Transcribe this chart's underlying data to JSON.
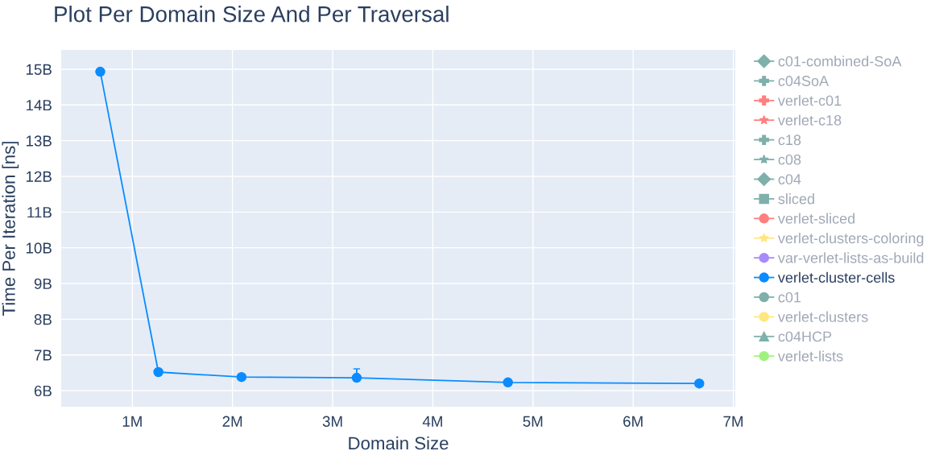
{
  "chart_data": {
    "type": "line",
    "title": "Plot Per Domain Size And Per Traversal",
    "xlabel": "Domain Size",
    "ylabel": "Time Per Iteration [ns]",
    "x": [
      680000,
      1260000,
      2090000,
      3240000,
      4750000,
      6660000
    ],
    "xlim": [
      290000,
      7020000
    ],
    "xticks": [
      {
        "value": 1000000,
        "label": "1M"
      },
      {
        "value": 2000000,
        "label": "2M"
      },
      {
        "value": 3000000,
        "label": "3M"
      },
      {
        "value": 4000000,
        "label": "4M"
      },
      {
        "value": 5000000,
        "label": "5M"
      },
      {
        "value": 6000000,
        "label": "6M"
      },
      {
        "value": 7000000,
        "label": "7M"
      }
    ],
    "ylim": [
      5550000000,
      15540000000
    ],
    "yticks": [
      {
        "value": 6000000000,
        "label": "6B"
      },
      {
        "value": 7000000000,
        "label": "7B"
      },
      {
        "value": 8000000000,
        "label": "8B"
      },
      {
        "value": 9000000000,
        "label": "9B"
      },
      {
        "value": 10000000000,
        "label": "10B"
      },
      {
        "value": 11000000000,
        "label": "11B"
      },
      {
        "value": 12000000000,
        "label": "12B"
      },
      {
        "value": 13000000000,
        "label": "13B"
      },
      {
        "value": 14000000000,
        "label": "14B"
      },
      {
        "value": 15000000000,
        "label": "15B"
      }
    ],
    "grid": true,
    "legend": "right",
    "line_style": "solid",
    "series": [
      {
        "name": "c01-combined-SoA",
        "color": "#7fb0aa",
        "marker": "diamond",
        "values": [
          null,
          null,
          null,
          null,
          null,
          null
        ]
      },
      {
        "name": "c04SoA",
        "color": "#7fb0aa",
        "marker": "cross",
        "values": [
          null,
          null,
          null,
          null,
          null,
          null
        ]
      },
      {
        "name": "verlet-c01",
        "color": "#ff7f7f",
        "marker": "cross",
        "values": [
          null,
          null,
          null,
          null,
          null,
          null
        ]
      },
      {
        "name": "verlet-c18",
        "color": "#ff7f7f",
        "marker": "star",
        "values": [
          null,
          null,
          null,
          null,
          null,
          null
        ]
      },
      {
        "name": "c18",
        "color": "#7fb0aa",
        "marker": "cross",
        "values": [
          null,
          null,
          null,
          null,
          null,
          null
        ]
      },
      {
        "name": "c08",
        "color": "#7fb0aa",
        "marker": "star",
        "values": [
          null,
          null,
          null,
          null,
          null,
          null
        ]
      },
      {
        "name": "c04",
        "color": "#7fb0aa",
        "marker": "diamond",
        "values": [
          null,
          null,
          null,
          null,
          null,
          null
        ]
      },
      {
        "name": "sliced",
        "color": "#7fb0aa",
        "marker": "square",
        "values": [
          null,
          null,
          null,
          null,
          null,
          null
        ]
      },
      {
        "name": "verlet-sliced",
        "color": "#ff7f7f",
        "marker": "circle",
        "values": [
          null,
          null,
          null,
          null,
          null,
          null
        ]
      },
      {
        "name": "verlet-clusters-coloring",
        "color": "#ffe680",
        "marker": "star",
        "values": [
          null,
          null,
          null,
          null,
          null,
          null
        ]
      },
      {
        "name": "var-verlet-lists-as-build",
        "color": "#a78bfa",
        "marker": "circle",
        "values": [
          null,
          null,
          null,
          null,
          null,
          null
        ]
      },
      {
        "name": "verlet-cluster-cells",
        "color": "#0a8cff",
        "marker": "circle",
        "values": [
          14930000000,
          6520000000,
          6380000000,
          6360000000,
          6230000000,
          6200000000
        ],
        "errors": [
          null,
          null,
          null,
          [
            6360000000,
            6610000000
          ],
          null,
          null
        ]
      },
      {
        "name": "c01",
        "color": "#7fb0aa",
        "marker": "circle",
        "values": [
          null,
          null,
          null,
          null,
          null,
          null
        ]
      },
      {
        "name": "verlet-clusters",
        "color": "#ffe680",
        "marker": "circle",
        "values": [
          null,
          null,
          null,
          null,
          null,
          null
        ]
      },
      {
        "name": "c04HCP",
        "color": "#7fb0aa",
        "marker": "triangle",
        "values": [
          null,
          null,
          null,
          null,
          null,
          null
        ]
      },
      {
        "name": "verlet-lists",
        "color": "#a0f27f",
        "marker": "circle",
        "values": [
          null,
          null,
          null,
          null,
          null,
          null
        ]
      }
    ]
  }
}
